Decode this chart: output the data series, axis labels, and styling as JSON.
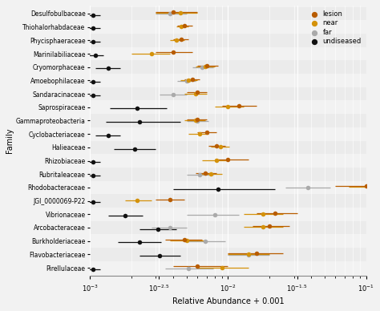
{
  "families": [
    "Desulfobulbaceae",
    "Thiohalorhabdaceae",
    "Phycisphaeraceae",
    "Marinilabiliaceae",
    "Cryomorphaceae",
    "Amoebophilaceae",
    "Sandaracinaceae",
    "Saprospiraceae",
    "Gammaproteobacteria",
    "Cyclobacteriaceae",
    "Halieaceae",
    "Rhizobiaceae",
    "Rubritaleaceae",
    "Rhodobacteraceae",
    "JGI_0000069-P22",
    "Vibrionaceae",
    "Arcobacteraceae",
    "Burkholderiaceae",
    "Flavobacteriaceae",
    "Pirellulaceae"
  ],
  "colors": {
    "lesion": "#B85C00",
    "near": "#D4920A",
    "far": "#AAAAAA",
    "undiseased": "#111111"
  },
  "points": {
    "lesion": {
      "Desulfobulbaceae": [
        0.004,
        0.003,
        0.006
      ],
      "Thiohalorhabdaceae": [
        0.0048,
        0.0043,
        0.0055
      ],
      "Phycisphaeraceae": [
        0.0046,
        0.004,
        0.0052
      ],
      "Marinilabiliaceae": [
        0.004,
        0.003,
        0.0055
      ],
      "Cryomorphaceae": [
        0.007,
        0.006,
        0.0085
      ],
      "Amoebophilaceae": [
        0.0055,
        0.0048,
        0.0062
      ],
      "Sandaracinaceae": [
        0.006,
        0.005,
        0.007
      ],
      "Saprospiraceae": [
        0.012,
        0.009,
        0.016
      ],
      "Gammaproteobacteria": [
        0.006,
        0.005,
        0.007
      ],
      "Cyclobacteriaceae": [
        0.007,
        0.006,
        0.0082
      ],
      "Halieaceae": [
        0.0082,
        0.0072,
        0.0095
      ],
      "Rhizobiaceae": [
        0.01,
        0.008,
        0.014
      ],
      "Rubritaleaceae": [
        0.0068,
        0.0058,
        0.0082
      ],
      "Rhodobacteraceae": [
        0.1,
        0.06,
        0.145
      ],
      "JGI_0000069-P22": [
        0.0038,
        0.003,
        0.0048
      ],
      "Vibrionaceae": [
        0.022,
        0.016,
        0.032
      ],
      "Arcobacteraceae": [
        0.02,
        0.015,
        0.028
      ],
      "Burkholderiaceae": [
        0.0048,
        0.0035,
        0.0065
      ],
      "Flavobacteriaceae": [
        0.016,
        0.01,
        0.025
      ],
      "Pirellulaceae": [
        0.006,
        0.004,
        0.01
      ]
    },
    "near": {
      "Desulfobulbaceae": [
        0.0045,
        0.003,
        0.006
      ],
      "Thiohalorhabdaceae": [
        0.0046,
        0.0042,
        0.0052
      ],
      "Phycisphaeraceae": [
        0.0042,
        0.0038,
        0.0048
      ],
      "Marinilabiliaceae": [
        0.0028,
        0.002,
        0.0038
      ],
      "Cryomorphaceae": [
        0.0068,
        0.0058,
        0.008
      ],
      "Amoebophilaceae": [
        0.0052,
        0.0045,
        0.006
      ],
      "Sandaracinaceae": [
        0.0058,
        0.0048,
        0.007
      ],
      "Saprospiraceae": [
        0.01,
        0.008,
        0.013
      ],
      "Gammaproteobacteria": [
        0.0058,
        0.0048,
        0.0068
      ],
      "Cyclobacteriaceae": [
        0.0062,
        0.0052,
        0.0072
      ],
      "Halieaceae": [
        0.0088,
        0.0075,
        0.0102
      ],
      "Rhizobiaceae": [
        0.0082,
        0.0065,
        0.01
      ],
      "Rubritaleaceae": [
        0.0075,
        0.0062,
        0.009
      ],
      "Rhodobacteraceae": [
        0.115,
        0.075,
        0.155
      ],
      "JGI_0000069-P22": [
        0.0022,
        0.0018,
        0.0028
      ],
      "Vibrionaceae": [
        0.018,
        0.013,
        0.025
      ],
      "Arcobacteraceae": [
        0.018,
        0.013,
        0.025
      ],
      "Burkholderiaceae": [
        0.005,
        0.0038,
        0.0068
      ],
      "Flavobacteriaceae": [
        0.014,
        0.01,
        0.02
      ],
      "Pirellulaceae": [
        0.009,
        0.006,
        0.014
      ]
    },
    "far": {
      "Desulfobulbaceae": [
        0.0038,
        0.003,
        0.005
      ],
      "Thiohalorhabdaceae": null,
      "Phycisphaeraceae": null,
      "Marinilabiliaceae": null,
      "Cryomorphaceae": [
        0.0065,
        0.0055,
        0.0078
      ],
      "Amoebophilaceae": [
        0.005,
        0.0043,
        0.0058
      ],
      "Sandaracinaceae": [
        0.004,
        0.0032,
        0.005
      ],
      "Saprospiraceae": null,
      "Gammaproteobacteria": [
        0.006,
        0.005,
        0.0072
      ],
      "Cyclobacteriaceae": null,
      "Halieaceae": null,
      "Rhizobiaceae": null,
      "Rubritaleaceae": [
        0.0062,
        0.005,
        0.0078
      ],
      "Rhodobacteraceae": [
        0.038,
        0.026,
        0.055
      ],
      "JGI_0000069-P22": null,
      "Vibrionaceae": [
        0.008,
        0.005,
        0.012
      ],
      "Arcobacteraceae": [
        0.0038,
        0.0028,
        0.005
      ],
      "Burkholderiaceae": [
        0.0068,
        0.0048,
        0.0095
      ],
      "Flavobacteriaceae": [
        0.014,
        0.01,
        0.02
      ],
      "Pirellulaceae": [
        0.0052,
        0.0035,
        0.0078
      ]
    },
    "undiseased": {
      "Desulfobulbaceae": [
        0.00105,
        0.00095,
        0.00118
      ],
      "Thiohalorhabdaceae": [
        0.00105,
        0.00095,
        0.00118
      ],
      "Phycisphaeraceae": [
        0.00105,
        0.00095,
        0.00118
      ],
      "Marinilabiliaceae": [
        0.0011,
        0.00098,
        0.00125
      ],
      "Cryomorphaceae": [
        0.00135,
        0.0011,
        0.00165
      ],
      "Amoebophilaceae": [
        0.00105,
        0.00095,
        0.00118
      ],
      "Sandaracinaceae": [
        0.00105,
        0.00095,
        0.00118
      ],
      "Saprospiraceae": [
        0.0022,
        0.0014,
        0.0036
      ],
      "Gammaproteobacteria": [
        0.0023,
        0.0013,
        0.0045
      ],
      "Cyclobacteriaceae": [
        0.00135,
        0.0011,
        0.00165
      ],
      "Halieaceae": [
        0.0021,
        0.0015,
        0.003
      ],
      "Rhizobiaceae": [
        0.00105,
        0.00095,
        0.00118
      ],
      "Rubritaleaceae": [
        0.00105,
        0.00095,
        0.00118
      ],
      "Rhodobacteraceae": [
        0.0085,
        0.004,
        0.022
      ],
      "JGI_0000069-P22": [
        0.00105,
        0.00095,
        0.00118
      ],
      "Vibrionaceae": [
        0.0018,
        0.00135,
        0.0024
      ],
      "Arcobacteraceae": [
        0.0031,
        0.0023,
        0.0042
      ],
      "Burkholderiaceae": [
        0.0023,
        0.0016,
        0.0033
      ],
      "Flavobacteriaceae": [
        0.0032,
        0.0023,
        0.0045
      ],
      "Pirellulaceae": [
        0.00105,
        0.00095,
        0.00118
      ]
    }
  },
  "xlabel": "Relative Abundance + 0.001",
  "ylabel": "Family",
  "background_color": "#F2F2F2",
  "grid_color": "#FFFFFF"
}
